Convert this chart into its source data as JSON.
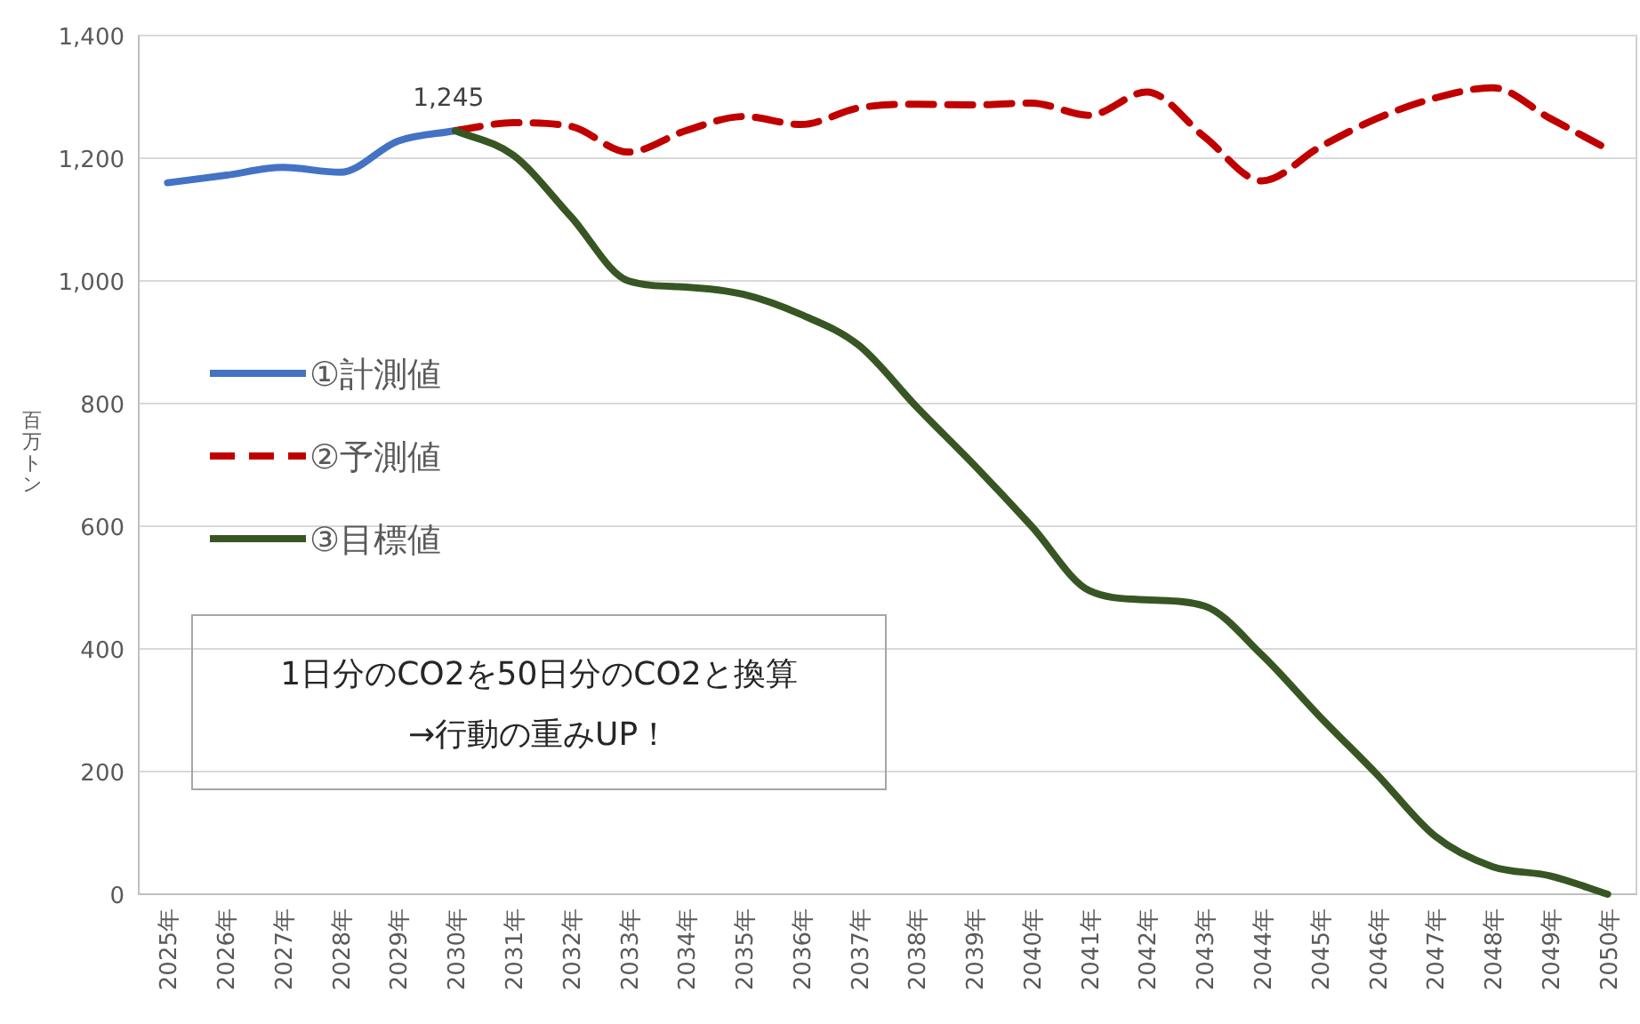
{
  "chart_data": {
    "type": "line",
    "ylabel": "百万トン",
    "grid": "y",
    "legend": "left",
    "categories": [
      "2025年",
      "2026年",
      "2027年",
      "2028年",
      "2029年",
      "2030年",
      "2031年",
      "2032年",
      "2033年",
      "2034年",
      "2035年",
      "2036年",
      "2037年",
      "2038年",
      "2039年",
      "2040年",
      "2041年",
      "2042年",
      "2043年",
      "2044年",
      "2045年",
      "2046年",
      "2047年",
      "2048年",
      "2049年",
      "2050年"
    ],
    "ylim": [
      0,
      1400
    ],
    "yticks": [
      0,
      200,
      400,
      600,
      800,
      {
        "value": 1000,
        "label": "1,000"
      },
      {
        "value": 1200,
        "label": "1,200"
      },
      {
        "value": 1400,
        "label": "1,400"
      }
    ],
    "series": [
      {
        "name": "①計測値",
        "color": "#4472c4",
        "line_style": "solid",
        "values": [
          1160,
          1172,
          1185,
          1177,
          1228,
          1245,
          null,
          null,
          null,
          null,
          null,
          null,
          null,
          null,
          null,
          null,
          null,
          null,
          null,
          null,
          null,
          null,
          null,
          null,
          null,
          null
        ]
      },
      {
        "name": "②予測値",
        "color": "#c00000",
        "line_style": "dashed",
        "values": [
          null,
          null,
          null,
          null,
          null,
          1245,
          1258,
          1252,
          1210,
          1245,
          1268,
          1255,
          1282,
          1288,
          1287,
          1290,
          1270,
          1308,
          1235,
          1163,
          1218,
          1265,
          1298,
          1315,
          1265,
          1215
        ]
      },
      {
        "name": "③目標値",
        "color": "#375623",
        "line_style": "solid",
        "values": [
          null,
          null,
          null,
          null,
          null,
          1245,
          1205,
          1105,
          1000,
          990,
          978,
          945,
          895,
          795,
          700,
          600,
          495,
          480,
          470,
          390,
          290,
          195,
          95,
          45,
          30,
          0
        ]
      }
    ],
    "annotations": [
      {
        "text": "1,245",
        "x": "2030年",
        "y": 1245
      },
      "1日分のCO2を50日分のCO2と換算",
      "→行動の重みUP！"
    ]
  }
}
